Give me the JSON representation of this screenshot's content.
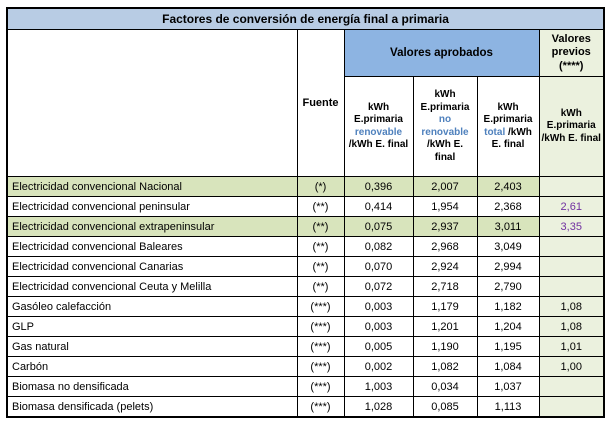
{
  "title": "Factores de conversión de energía final a primaria",
  "colors": {
    "title_bg": "#B8CCE4",
    "approved_header_bg": "#8DB4E2",
    "previous_col_bg": "#EBF1DE",
    "highlight_row_bg": "#D8E4BC",
    "header_accent_text": "#4F81BD",
    "previous_value_text": "#7030A0",
    "border": "#000000"
  },
  "header": {
    "fuente": "Fuente",
    "approved_group": "Valores aprobados",
    "previous_group": "Valores previos (****)",
    "col_renovable": {
      "prefix": "kWh E.primaria ",
      "accent": "renovable",
      "suffix": " /kWh E. final"
    },
    "col_no_renovable": {
      "prefix": "kWh E.primaria ",
      "accent": "no renovable",
      "suffix": " /kWh E. final"
    },
    "col_total": {
      "prefix": "kWh E.primaria ",
      "accent": "total",
      "suffix": " /kWh E. final"
    },
    "col_previous": "kWh E.primaria /kWh E. final"
  },
  "table": {
    "rows": [
      {
        "label": "Electricidad convencional Nacional",
        "fuente": "(*)",
        "renovable": "0,396",
        "no_renovable": "2,007",
        "total": "2,403",
        "previos": ""
      },
      {
        "label": "Electricidad convencional peninsular",
        "fuente": "(**)",
        "renovable": "0,414",
        "no_renovable": "1,954",
        "total": "2,368",
        "previos": "2,61"
      },
      {
        "label": "Electricidad convencional extrapeninsular",
        "fuente": "(**)",
        "renovable": "0,075",
        "no_renovable": "2,937",
        "total": "3,011",
        "previos": "3,35"
      },
      {
        "label": "Electricidad convencional Baleares",
        "fuente": "(**)",
        "renovable": "0,082",
        "no_renovable": "2,968",
        "total": "3,049",
        "previos": ""
      },
      {
        "label": "Electricidad convencional Canarias",
        "fuente": "(**)",
        "renovable": "0,070",
        "no_renovable": "2,924",
        "total": "2,994",
        "previos": ""
      },
      {
        "label": "Electricidad convencional Ceuta y Melilla",
        "fuente": "(**)",
        "renovable": "0,072",
        "no_renovable": "2,718",
        "total": "2,790",
        "previos": ""
      },
      {
        "label": "Gasóleo calefacción",
        "fuente": "(***)",
        "renovable": "0,003",
        "no_renovable": "1,179",
        "total": "1,182",
        "previos": "1,08"
      },
      {
        "label": "GLP",
        "fuente": "(***)",
        "renovable": "0,003",
        "no_renovable": "1,201",
        "total": "1,204",
        "previos": "1,08"
      },
      {
        "label": "Gas natural",
        "fuente": "(***)",
        "renovable": "0,005",
        "no_renovable": "1,190",
        "total": "1,195",
        "previos": "1,01"
      },
      {
        "label": "Carbón",
        "fuente": "(***)",
        "renovable": "0,002",
        "no_renovable": "1,082",
        "total": "1,084",
        "previos": "1,00"
      },
      {
        "label": "Biomasa no densificada",
        "fuente": "(***)",
        "renovable": "1,003",
        "no_renovable": "0,034",
        "total": "1,037",
        "previos": ""
      },
      {
        "label": "Biomasa densificada (pelets)",
        "fuente": "(***)",
        "renovable": "1,028",
        "no_renovable": "0,085",
        "total": "1,113",
        "previos": ""
      }
    ]
  }
}
